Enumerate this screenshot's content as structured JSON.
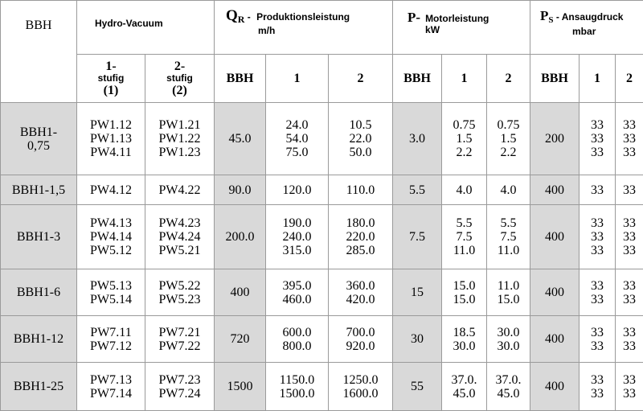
{
  "header": {
    "bbh": "BBH",
    "hydro_vacuum": "Hydro-Vacuum",
    "qr_symbol": "Q",
    "qr_sub": "R",
    "qr_dash": " - ",
    "qr_label": "Produktionsleistung",
    "qr_unit": "m/h",
    "p_symbol": "P-",
    "p_label": "Motorleistung",
    "p_unit": "kW",
    "ps_symbol": "P",
    "ps_sub": "S",
    "ps_label": " - Ansaugdruck",
    "ps_unit": "mbar",
    "stage1_num": "1-",
    "stage1_word": "stufig",
    "stage1_paren": "(1)",
    "stage2_num": "2-",
    "stage2_word": "stufig",
    "stage2_paren": "(2)",
    "sub_bbh": "BBH",
    "sub_1": "1",
    "sub_2": "2"
  },
  "rows": [
    {
      "model": [
        "BBH1-",
        "0,75"
      ],
      "s1": [
        "PW1.12",
        "PW1.13",
        "PW4.11"
      ],
      "s2": [
        "PW1.21",
        "PW1.22",
        "PW1.23"
      ],
      "q_bbh": "45.0",
      "q1": [
        "24.0",
        "54.0",
        "75.0"
      ],
      "q2": [
        "10.5",
        "22.0",
        "50.0"
      ],
      "p_bbh": "3.0",
      "p1": [
        "0.75",
        "1.5",
        "2.2"
      ],
      "p2": [
        "0.75",
        "1.5",
        "2.2"
      ],
      "ps_bbh": "200",
      "ps1": [
        "33",
        "33",
        "33"
      ],
      "ps2": [
        "33",
        "33",
        "33"
      ]
    },
    {
      "model": [
        "BBH1-1,5"
      ],
      "s1": [
        "PW4.12"
      ],
      "s2": [
        "PW4.22"
      ],
      "q_bbh": "90.0",
      "q1": [
        "120.0"
      ],
      "q2": [
        "110.0"
      ],
      "p_bbh": "5.5",
      "p1": [
        "4.0"
      ],
      "p2": [
        "4.0"
      ],
      "ps_bbh": "400",
      "ps1": [
        "33"
      ],
      "ps2": [
        "33"
      ]
    },
    {
      "model": [
        "BBH1-3"
      ],
      "s1": [
        "PW4.13",
        "PW4.14",
        "PW5.12"
      ],
      "s2": [
        "PW4.23",
        "PW4.24",
        "PW5.21"
      ],
      "q_bbh": "200.0",
      "q1": [
        "190.0",
        "240.0",
        "315.0"
      ],
      "q2": [
        "180.0",
        "220.0",
        "285.0"
      ],
      "p_bbh": "7.5",
      "p1": [
        "5.5",
        "7.5",
        "11.0"
      ],
      "p2": [
        "5.5",
        "7.5",
        "11.0"
      ],
      "ps_bbh": "400",
      "ps1": [
        "33",
        "33",
        "33"
      ],
      "ps2": [
        "33",
        "33",
        "33"
      ]
    },
    {
      "model": [
        "BBH1-6"
      ],
      "s1": [
        "PW5.13",
        "PW5.14"
      ],
      "s2": [
        "PW5.22",
        "PW5.23"
      ],
      "q_bbh": "400",
      "q1": [
        "395.0",
        "460.0"
      ],
      "q2": [
        "360.0",
        "420.0"
      ],
      "p_bbh": "15",
      "p1": [
        "15.0",
        "15.0"
      ],
      "p2": [
        "11.0",
        "15.0"
      ],
      "ps_bbh": "400",
      "ps1": [
        "33",
        "33"
      ],
      "ps2": [
        "33",
        "33"
      ]
    },
    {
      "model": [
        "BBH1-12"
      ],
      "s1": [
        "PW7.11",
        "PW7.12"
      ],
      "s2": [
        "PW7.21",
        "PW7.22"
      ],
      "q_bbh": "720",
      "q1": [
        "600.0",
        "800.0"
      ],
      "q2": [
        "700.0",
        "920.0"
      ],
      "p_bbh": "30",
      "p1": [
        "18.5",
        "30.0"
      ],
      "p2": [
        "30.0",
        "30.0"
      ],
      "ps_bbh": "400",
      "ps1": [
        "33",
        "33"
      ],
      "ps2": [
        "33",
        "33"
      ]
    },
    {
      "model": [
        "BBH1-25"
      ],
      "s1": [
        "PW7.13",
        "PW7.14"
      ],
      "s2": [
        "PW7.23",
        "PW7.24"
      ],
      "q_bbh": "1500",
      "q1": [
        "1150.0",
        "1500.0"
      ],
      "q2": [
        "1250.0",
        "1600.0"
      ],
      "p_bbh": "55",
      "p1": [
        "37.0.",
        "45.0"
      ],
      "p2": [
        "37.0.",
        "45.0"
      ],
      "ps_bbh": "400",
      "ps1": [
        "33",
        "33"
      ],
      "ps2": [
        "33",
        "33"
      ]
    }
  ]
}
